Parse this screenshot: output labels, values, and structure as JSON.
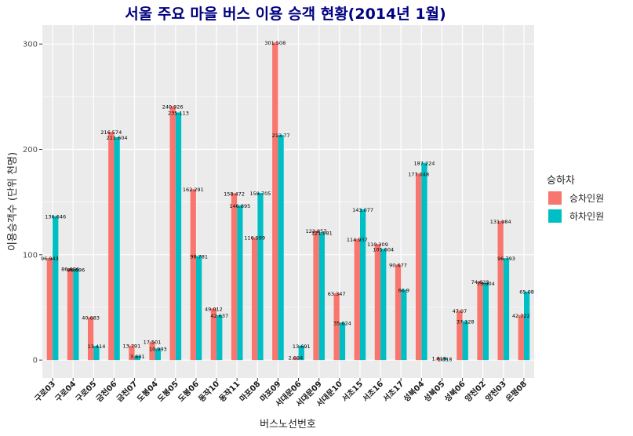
{
  "chart_data": {
    "type": "bar",
    "title": "서울 주요 마을 버스 이용 승객 현황(2014년 1월)",
    "xlabel": "버스노선번호",
    "ylabel": "이용승객수 (단위 천명)",
    "ylim": [
      -17,
      318
    ],
    "yticks": [
      0,
      100,
      200,
      300
    ],
    "grid": true,
    "legend_position": "right",
    "legend_title": "승하차",
    "categories": [
      "구로03",
      "구로04",
      "구로05",
      "금천06",
      "금천07",
      "도봉04",
      "도봉05",
      "도봉06",
      "동작10",
      "동작11",
      "마포08",
      "마포09",
      "서대문06",
      "서대문09",
      "서대문10",
      "서초15",
      "서초16",
      "서초17",
      "성북04",
      "성북05",
      "성북06",
      "양천02",
      "양천03",
      "은평08"
    ],
    "series": [
      {
        "name": "승차인원",
        "color": "#F8766D",
        "values": [
          96.943,
          86.686,
          40.683,
          216.574,
          13.791,
          17.501,
          240.926,
          162.291,
          49.012,
          158.472,
          116.599,
          301.508,
          2.604,
          122.857,
          63.347,
          114.937,
          110.309,
          90.677,
          177.048,
          1.819,
          47.07,
          74.623,
          131.984,
          42.722
        ],
        "labels": [
          "96.943",
          "86.686",
          "40.683",
          "216.574",
          "13.791",
          "17.501",
          "240.926",
          "162.291",
          "49.012",
          "158.472",
          "116.599",
          "301.508",
          "2.604",
          "122.857",
          "63.347",
          "114.937",
          "110.309",
          "90.677",
          "177.048",
          "1.819",
          "47.07",
          "74.623",
          "131.984",
          "42.722"
        ]
      },
      {
        "name": "하차인원",
        "color": "#00BFC4",
        "values": [
          136.646,
          86.096,
          13.414,
          211.604,
          3.891,
          10.993,
          235.113,
          98.781,
          42.637,
          146.895,
          158.705,
          213.77,
          13.691,
          121.081,
          35.624,
          143.077,
          105.604,
          66.9,
          187.224,
          1.318,
          37.128,
          73.004,
          96.793,
          65.08
        ],
        "labels": [
          "136.646",
          "86.096",
          "13.414",
          "211.604",
          "3.891",
          "10.993",
          "235.113",
          "98.781",
          "42.637",
          "146.895",
          "158.705",
          "213.77",
          "13.691",
          "121.081",
          "35.624",
          "143.077",
          "105.604",
          "66.9",
          "187.224",
          "1.318",
          "37.128",
          "73.004",
          "96.793",
          "65.08"
        ]
      }
    ]
  }
}
